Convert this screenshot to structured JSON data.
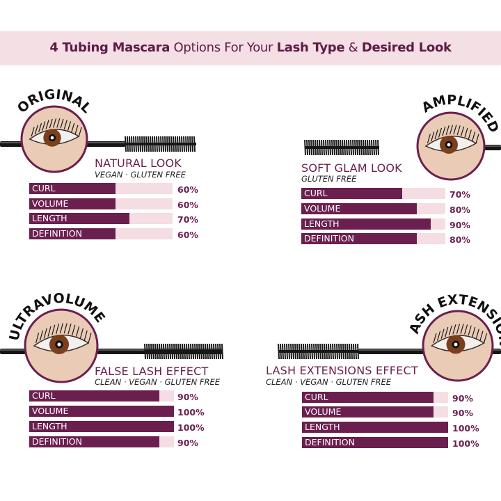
{
  "header": {
    "parts": [
      {
        "text": "4 Tubing Mascara",
        "bold": true
      },
      {
        "text": " Options For Your ",
        "bold": false
      },
      {
        "text": "Lash Type",
        "bold": true
      },
      {
        "text": " & ",
        "bold": false
      },
      {
        "text": "Desired Look",
        "bold": true
      }
    ]
  },
  "colors": {
    "accent": "#6b1f4f",
    "bar_track": "#f4dde3",
    "band": "#f3dfe4"
  },
  "chart_data": [
    {
      "type": "bar",
      "orientation": "horizontal",
      "badge": "ORIGINAL",
      "title": "NATURAL LOOK",
      "subtitle": "VEGAN · GLUTEN FREE",
      "categories": [
        "CURL",
        "VOLUME",
        "LENGTH",
        "DEFINITION"
      ],
      "values": [
        60,
        60,
        70,
        60
      ],
      "labels": [
        "60%",
        "60%",
        "70%",
        "60%"
      ],
      "xlim": [
        0,
        100
      ]
    },
    {
      "type": "bar",
      "orientation": "horizontal",
      "badge": "AMPLIFIED",
      "title": "SOFT GLAM LOOK",
      "subtitle": "GLUTEN FREE",
      "categories": [
        "CURL",
        "VOLUME",
        "LENGTH",
        "DEFINITION"
      ],
      "values": [
        70,
        80,
        90,
        80
      ],
      "labels": [
        "70%",
        "80%",
        "90%",
        "80%"
      ],
      "xlim": [
        0,
        100
      ]
    },
    {
      "type": "bar",
      "orientation": "horizontal",
      "badge": "ULTRAVOLUME",
      "title": "FALSE LASH EFFECT",
      "subtitle": "CLEAN · VEGAN · GLUTEN FREE",
      "categories": [
        "CURL",
        "VOLUME",
        "LENGTH",
        "DEFINITION"
      ],
      "values": [
        90,
        100,
        100,
        90
      ],
      "labels": [
        "90%",
        "100%",
        "100%",
        "90%"
      ],
      "xlim": [
        0,
        100
      ]
    },
    {
      "type": "bar",
      "orientation": "horizontal",
      "badge": "LASH EXTENSION",
      "title": "LASH EXTENSIONS EFFECT",
      "subtitle": "CLEAN · VEGAN · GLUTEN FREE",
      "categories": [
        "CURL",
        "VOLUME",
        "LENGTH",
        "DEFINITION"
      ],
      "values": [
        90,
        90,
        100,
        100
      ],
      "labels": [
        "90%",
        "90%",
        "100%",
        "100%"
      ],
      "xlim": [
        0,
        100
      ]
    }
  ]
}
